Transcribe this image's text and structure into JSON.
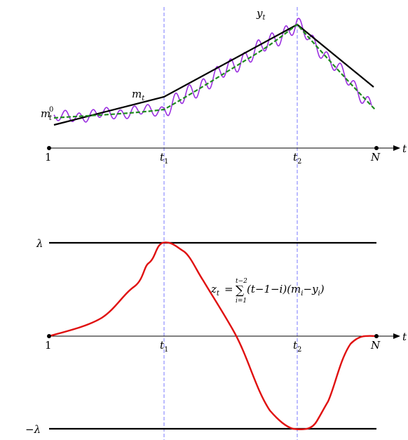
{
  "top_panel": {
    "axis_label": "t",
    "ticks": [
      {
        "label": "1",
        "sub": ""
      },
      {
        "label": "t",
        "sub": "1"
      },
      {
        "label": "t",
        "sub": "2"
      },
      {
        "label": "N",
        "sub": ""
      }
    ],
    "series_labels": {
      "y": {
        "base": "y",
        "sub": "t"
      },
      "m": {
        "base": "m",
        "sub": "t"
      },
      "m0": {
        "base": "m",
        "sub": "t",
        "sup": "0"
      }
    }
  },
  "bottom_panel": {
    "axis_label": "t",
    "ticks": [
      {
        "label": "1",
        "sub": ""
      },
      {
        "label": "t",
        "sub": "1"
      },
      {
        "label": "t",
        "sub": "2"
      },
      {
        "label": "N",
        "sub": ""
      }
    ],
    "bound_upper": "λ",
    "bound_lower": "−λ",
    "formula": {
      "lhs": "z",
      "lhs_sub": "t",
      "eq": "=",
      "sum": "∑",
      "sum_top": "t−2",
      "sum_bottom": "i=1",
      "body_1": "(t−1−i)(m",
      "body_sub_1": "i",
      "body_2": "−y",
      "body_sub_2": "i",
      "body_3": ")"
    }
  },
  "colors": {
    "axis": "#000000",
    "guide": "#7a7aff",
    "signal": "#9b30e0",
    "trend": "#000000",
    "estimate": "#1f8a1f",
    "z": "#e01010"
  }
}
